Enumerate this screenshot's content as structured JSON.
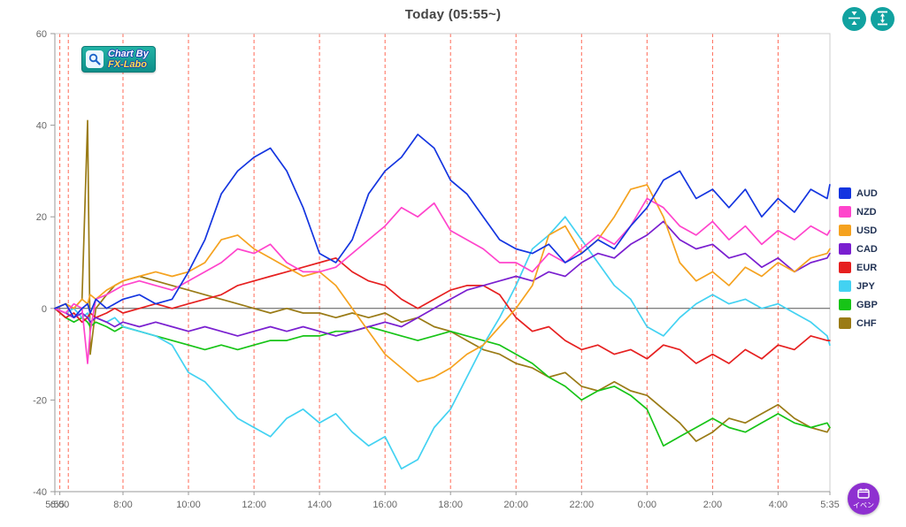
{
  "header": {
    "title": "Today  (05:55~)"
  },
  "logo": {
    "line1": "Chart By",
    "line2": "FX-Labo",
    "bg": "#17a398"
  },
  "controls": {
    "button_color": "#11a2a0"
  },
  "event_button": {
    "label": "イベン",
    "color": "#8e30d0"
  },
  "chart_data": {
    "type": "line",
    "title": "Today (05:55~)",
    "xlabel": "",
    "ylabel": "",
    "legend_position": "right",
    "grid": true,
    "grid_color": "#ff4f39",
    "xlim": [
      5.92,
      29.583
    ],
    "ylim": [
      -40,
      60
    ],
    "yticks": [
      60,
      40,
      20,
      0,
      -20,
      -40
    ],
    "xticks": [
      {
        "v": 5.92,
        "label": "5:55"
      },
      {
        "v": 6.07,
        "label": "6:00"
      },
      {
        "v": 8,
        "label": "8:00"
      },
      {
        "v": 10,
        "label": "10:00"
      },
      {
        "v": 12,
        "label": "12:00"
      },
      {
        "v": 14,
        "label": "14:00"
      },
      {
        "v": 16,
        "label": "16:00"
      },
      {
        "v": 18,
        "label": "18:00"
      },
      {
        "v": 20,
        "label": "20:00"
      },
      {
        "v": 22,
        "label": "22:00"
      },
      {
        "v": 24,
        "label": "0:00"
      },
      {
        "v": 26,
        "label": "2:00"
      },
      {
        "v": 28,
        "label": "4:00"
      },
      {
        "v": 29.583,
        "label": "5:35"
      }
    ],
    "event_gridlines": [
      5.92,
      6.07,
      6.33,
      8,
      10,
      12,
      14,
      16,
      18,
      20,
      22,
      24,
      26,
      28
    ],
    "x": [
      5.92,
      6.25,
      6.5,
      6.75,
      6.92,
      7.0,
      7.17,
      7.5,
      7.75,
      8.0,
      8.5,
      9.0,
      9.5,
      10.0,
      10.5,
      11.0,
      11.5,
      12.0,
      12.5,
      13.0,
      13.5,
      14.0,
      14.5,
      15.0,
      15.5,
      16.0,
      16.5,
      17.0,
      17.5,
      18.0,
      18.5,
      19.0,
      19.5,
      20.0,
      20.5,
      21.0,
      21.5,
      22.0,
      22.5,
      23.0,
      23.5,
      24.0,
      24.5,
      25.0,
      25.5,
      26.0,
      26.5,
      27.0,
      27.5,
      28.0,
      28.5,
      29.0,
      29.5,
      29.58
    ],
    "series": [
      {
        "name": "AUD",
        "color": "#1435e0",
        "values": [
          0,
          1,
          -2,
          0,
          1,
          -1,
          2,
          0,
          1,
          2,
          3,
          1,
          2,
          8,
          15,
          25,
          30,
          33,
          35,
          30,
          22,
          12,
          10,
          15,
          25,
          30,
          33,
          38,
          35,
          28,
          25,
          20,
          15,
          13,
          12,
          14,
          10,
          12,
          15,
          13,
          18,
          22,
          28,
          30,
          24,
          26,
          22,
          26,
          20,
          24,
          21,
          26,
          24,
          27
        ]
      },
      {
        "name": "NZD",
        "color": "#ff44cc",
        "values": [
          0,
          -1,
          1,
          0,
          -12,
          -5,
          2,
          3,
          4,
          5,
          6,
          5,
          4,
          6,
          8,
          10,
          13,
          12,
          14,
          10,
          8,
          8,
          9,
          12,
          15,
          18,
          22,
          20,
          23,
          17,
          15,
          13,
          10,
          10,
          8,
          12,
          10,
          13,
          16,
          14,
          18,
          24,
          22,
          18,
          16,
          19,
          15,
          18,
          14,
          17,
          15,
          18,
          16,
          17
        ]
      },
      {
        "name": "USD",
        "color": "#f5a21f",
        "values": [
          0,
          1,
          0,
          2,
          1,
          3,
          2,
          4,
          5,
          6,
          7,
          8,
          7,
          8,
          10,
          15,
          16,
          13,
          11,
          9,
          7,
          8,
          5,
          0,
          -5,
          -10,
          -13,
          -16,
          -15,
          -13,
          -10,
          -8,
          -4,
          0,
          5,
          16,
          18,
          12,
          15,
          20,
          26,
          27,
          20,
          10,
          6,
          8,
          5,
          9,
          7,
          10,
          8,
          11,
          12,
          13
        ]
      },
      {
        "name": "CAD",
        "color": "#7a1fd0",
        "values": [
          0,
          -1,
          -2,
          -1,
          -2,
          -3,
          -2,
          -3,
          -4,
          -3,
          -4,
          -3,
          -4,
          -5,
          -4,
          -5,
          -6,
          -5,
          -4,
          -5,
          -4,
          -5,
          -6,
          -5,
          -4,
          -3,
          -4,
          -2,
          0,
          2,
          4,
          5,
          6,
          7,
          6,
          8,
          7,
          10,
          12,
          11,
          14,
          16,
          19,
          15,
          13,
          14,
          11,
          12,
          9,
          11,
          8,
          10,
          11,
          12
        ]
      },
      {
        "name": "EUR",
        "color": "#e62020",
        "values": [
          0,
          -2,
          -1,
          -3,
          -2,
          -1,
          -2,
          -1,
          0,
          -1,
          0,
          1,
          0,
          1,
          2,
          3,
          5,
          6,
          7,
          8,
          9,
          10,
          11,
          8,
          6,
          5,
          2,
          0,
          2,
          4,
          5,
          5,
          3,
          -2,
          -5,
          -4,
          -7,
          -9,
          -8,
          -10,
          -9,
          -11,
          -8,
          -9,
          -12,
          -10,
          -12,
          -9,
          -11,
          -8,
          -9,
          -6,
          -7,
          -7
        ]
      },
      {
        "name": "JPY",
        "color": "#43d2f2",
        "values": [
          0,
          -1,
          0,
          -2,
          -1,
          -3,
          -2,
          -3,
          -2,
          -4,
          -5,
          -6,
          -8,
          -14,
          -16,
          -20,
          -24,
          -26,
          -28,
          -24,
          -22,
          -25,
          -23,
          -27,
          -30,
          -28,
          -35,
          -33,
          -26,
          -22,
          -15,
          -8,
          -2,
          5,
          13,
          16,
          20,
          15,
          10,
          5,
          2,
          -4,
          -6,
          -2,
          1,
          3,
          1,
          2,
          0,
          1,
          -1,
          -3,
          -6,
          -8
        ]
      },
      {
        "name": "GBP",
        "color": "#17c417",
        "values": [
          0,
          -2,
          -3,
          -2,
          -3,
          -4,
          -3,
          -4,
          -5,
          -4,
          -5,
          -6,
          -7,
          -8,
          -9,
          -8,
          -9,
          -8,
          -7,
          -7,
          -6,
          -6,
          -5,
          -5,
          -4,
          -5,
          -6,
          -7,
          -6,
          -5,
          -6,
          -7,
          -8,
          -10,
          -12,
          -15,
          -17,
          -20,
          -18,
          -17,
          -19,
          -22,
          -30,
          -28,
          -26,
          -24,
          -26,
          -27,
          -25,
          -23,
          -25,
          -26,
          -25,
          -26
        ]
      },
      {
        "name": "CHF",
        "color": "#9a7b16",
        "values": [
          0,
          1,
          0,
          2,
          41,
          -10,
          0,
          3,
          5,
          6,
          7,
          6,
          5,
          4,
          3,
          2,
          1,
          0,
          -1,
          0,
          -1,
          -1,
          -2,
          -1,
          -2,
          -1,
          -3,
          -2,
          -4,
          -5,
          -7,
          -9,
          -10,
          -12,
          -13,
          -15,
          -14,
          -17,
          -18,
          -16,
          -18,
          -19,
          -22,
          -25,
          -29,
          -27,
          -24,
          -25,
          -23,
          -21,
          -24,
          -26,
          -27,
          -26
        ]
      }
    ]
  }
}
